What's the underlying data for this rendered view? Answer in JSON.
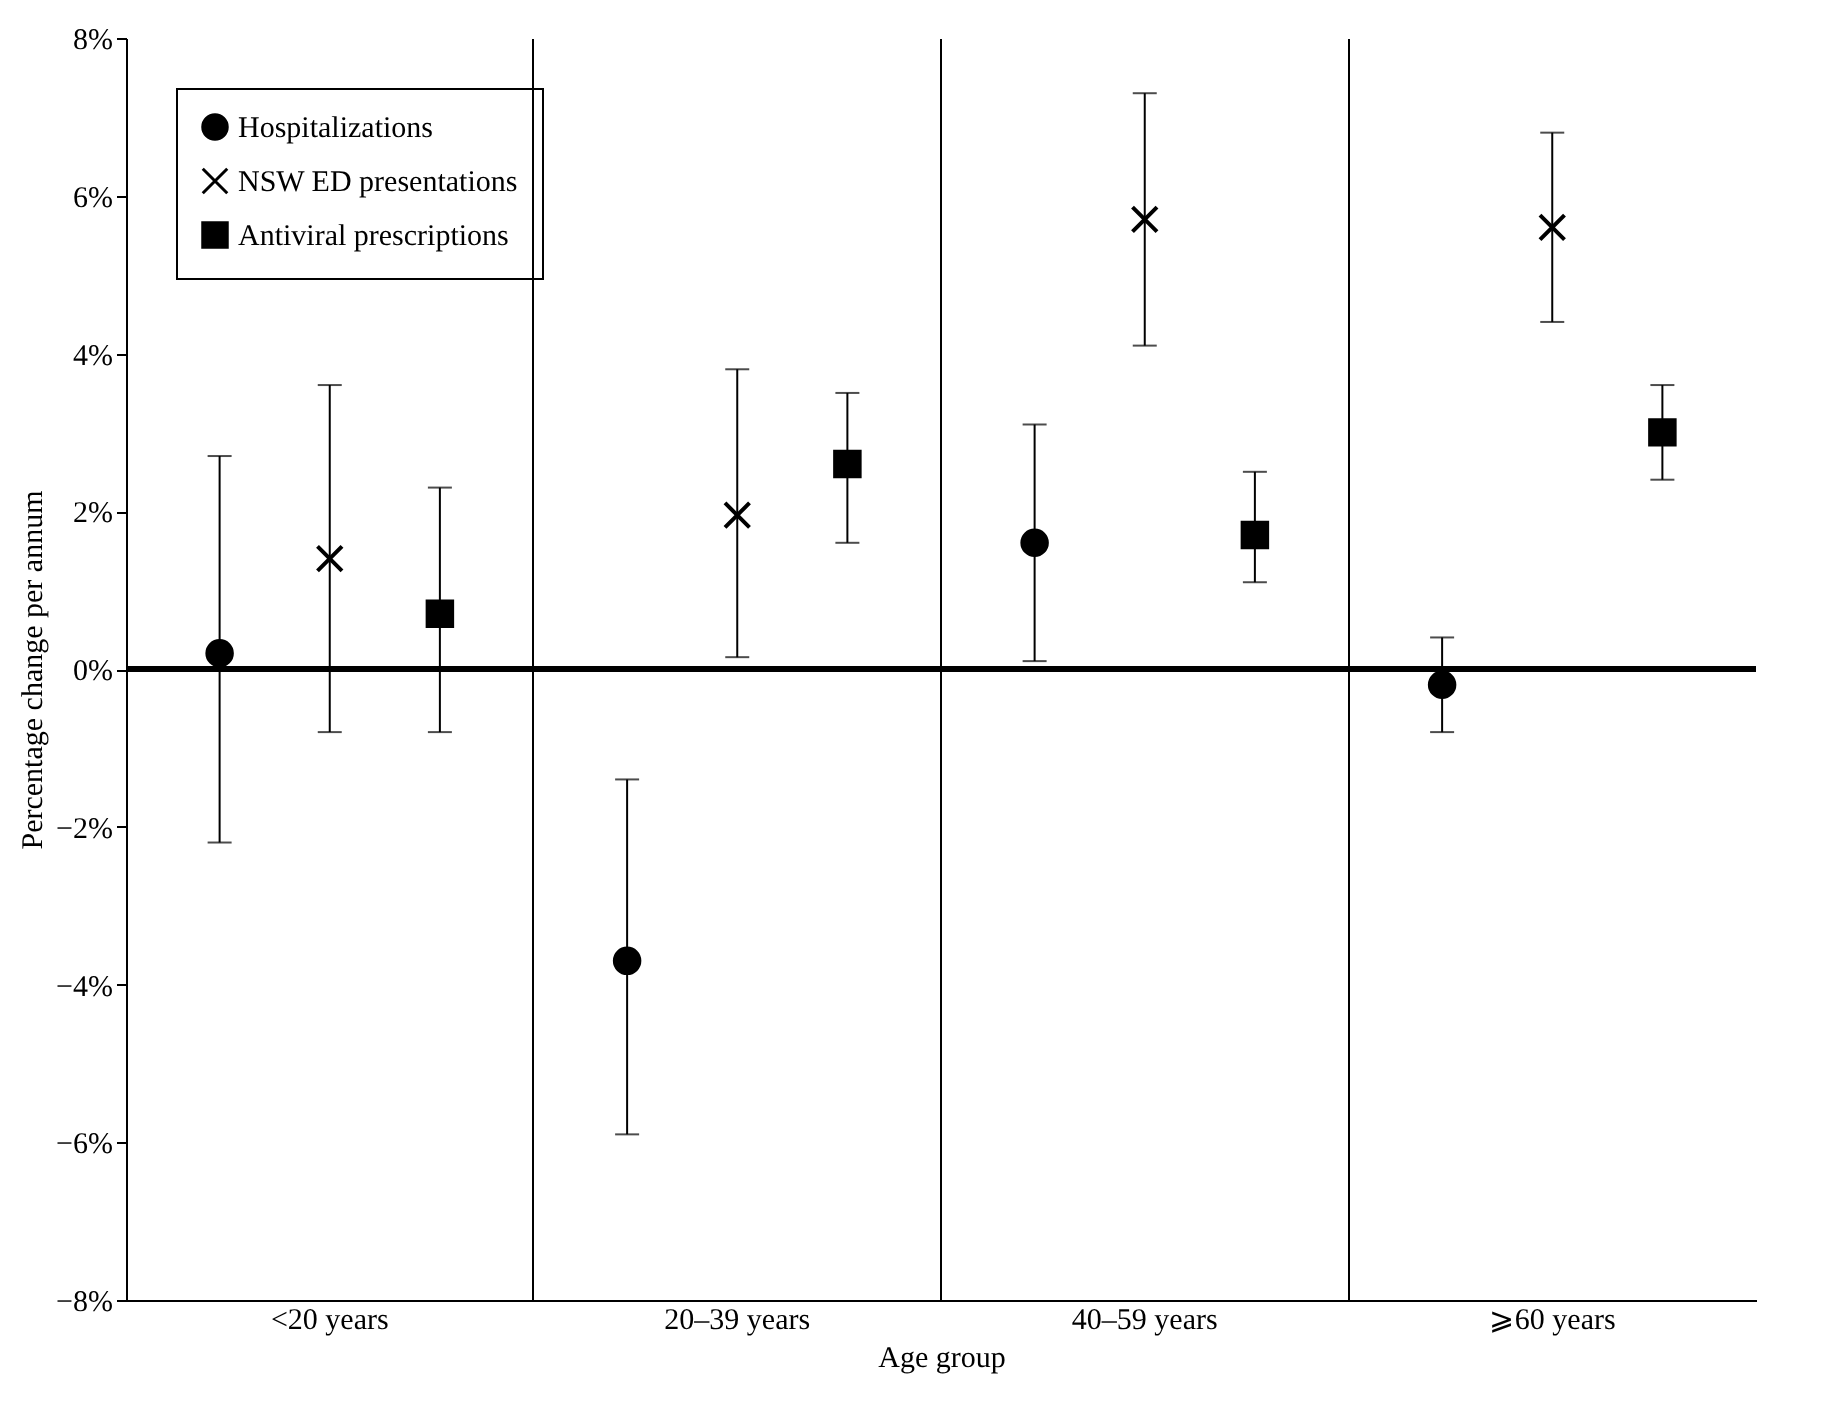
{
  "chart_data": {
    "type": "scatter",
    "xlabel": "Age group",
    "ylabel": "Percentage change per annum",
    "categories": [
      "<20 years",
      "20–39 years",
      "40–59 years",
      "⩾60 years"
    ],
    "series": [
      {
        "name": "Hospitalizations",
        "color": "#000000",
        "marker": "circle",
        "values": [
          0.2,
          -3.7,
          1.6,
          -0.2
        ],
        "errors": [
          [
            -2.2,
            2.7
          ],
          [
            -5.9,
            -1.4
          ],
          [
            0.1,
            3.1
          ],
          [
            -0.8,
            0.4
          ]
        ]
      },
      {
        "name": "NSW ED presentations",
        "color": "#000000",
        "marker": "cross",
        "values": [
          1.4,
          1.95,
          5.7,
          5.6
        ],
        "errors": [
          [
            -0.8,
            3.6
          ],
          [
            0.15,
            3.8
          ],
          [
            4.1,
            7.3
          ],
          [
            4.4,
            6.8
          ]
        ]
      },
      {
        "name": "Antiviral prescriptions",
        "color": "#000000",
        "marker": "square",
        "values": [
          0.7,
          2.6,
          1.7,
          3.0
        ],
        "errors": [
          [
            -0.8,
            2.3
          ],
          [
            1.6,
            3.5
          ],
          [
            1.1,
            2.5
          ],
          [
            2.4,
            3.6
          ]
        ]
      }
    ],
    "ylim": [
      -8,
      8
    ],
    "yticks": [
      {
        "value": -8,
        "label": "−8%"
      },
      {
        "value": -6,
        "label": "−6%"
      },
      {
        "value": -4,
        "label": "−4%"
      },
      {
        "value": -2,
        "label": "−2%"
      },
      {
        "value": 0,
        "label": "0%"
      },
      {
        "value": 2,
        "label": "2%"
      },
      {
        "value": 4,
        "label": "4%"
      },
      {
        "value": 6,
        "label": "6%"
      },
      {
        "value": 8,
        "label": "8%"
      }
    ],
    "ref_lines": [
      {
        "axis": "y",
        "value": 0,
        "color": "#000000"
      }
    ],
    "grid": "x",
    "legend": "top left"
  }
}
